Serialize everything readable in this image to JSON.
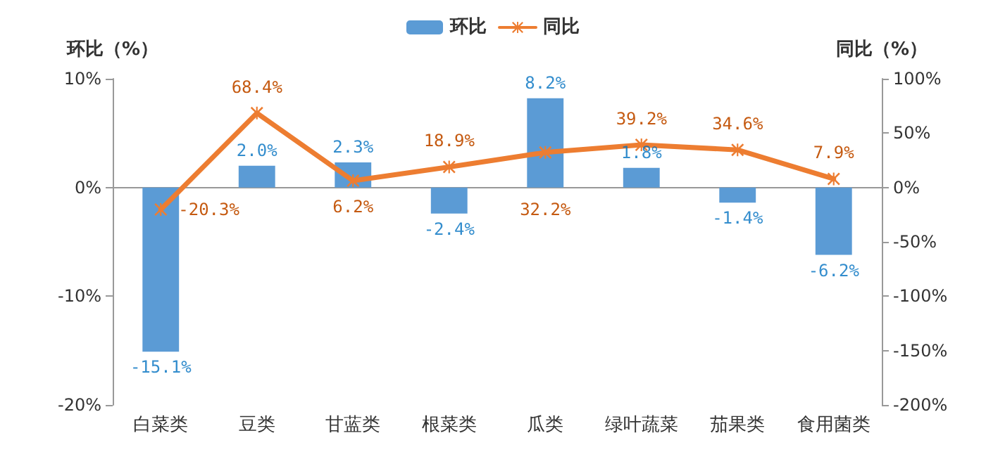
{
  "chart_data": {
    "type": "bar",
    "categories": [
      "白菜类",
      "豆类",
      "甘蓝类",
      "根菜类",
      "瓜类",
      "绿叶蔬菜",
      "茄果类",
      "食用菌类"
    ],
    "ylabel": "环比（%）",
    "y2label": "同比（%）",
    "series": [
      {
        "name": "环比",
        "type": "bar",
        "color": "#5b9bd5",
        "values": [
          -15.1,
          2.0,
          2.3,
          -2.4,
          8.2,
          1.8,
          -1.4,
          -6.2
        ],
        "value_labels": [
          "-15.1%",
          "2.0%",
          "2.3%",
          "-2.4%",
          "8.2%",
          "1.8%",
          "-1.4%",
          "-6.2%"
        ]
      },
      {
        "name": "同比",
        "type": "line",
        "axis": "y2",
        "color": "#ed7d31",
        "marker": "cross",
        "values": [
          -20.3,
          68.4,
          6.2,
          18.9,
          32.2,
          39.2,
          34.6,
          7.9
        ],
        "value_labels": [
          "-20.3%",
          "68.4%",
          "6.2%",
          "18.9%",
          "32.2%",
          "39.2%",
          "34.6%",
          "7.9%"
        ]
      }
    ],
    "ylim": [
      -20,
      10
    ],
    "yticks": [
      {
        "value": -20,
        "label": "-20%"
      },
      {
        "value": -10,
        "label": "-10%"
      },
      {
        "value": 0,
        "label": "0%"
      },
      {
        "value": 10,
        "label": "10%"
      }
    ],
    "y2lim": [
      -200,
      100
    ],
    "y2ticks": [
      {
        "value": -200,
        "label": "-200%"
      },
      {
        "value": -150,
        "label": "-150%"
      },
      {
        "value": -100,
        "label": "-100%"
      },
      {
        "value": -50,
        "label": "-50%"
      },
      {
        "value": 0,
        "label": "0%"
      },
      {
        "value": 50,
        "label": "50%"
      },
      {
        "value": 100,
        "label": "100%"
      }
    ],
    "legend": "top"
  }
}
